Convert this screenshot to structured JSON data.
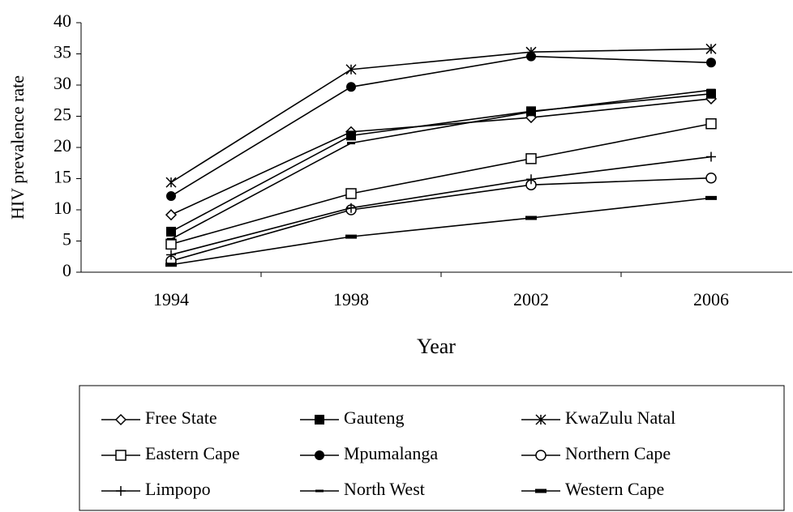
{
  "chart_data": {
    "type": "line",
    "ylabel": "HIV prevalence rate",
    "xlabel": "Year",
    "categories": [
      "1994",
      "1998",
      "2002",
      "2006"
    ],
    "ylim": [
      0,
      40
    ],
    "yticks": [
      0,
      5,
      10,
      15,
      20,
      25,
      30,
      35,
      40
    ],
    "series": [
      {
        "name": "Free State",
        "color": "#000000",
        "marker": "diamond",
        "values": [
          9.2,
          22.5,
          24.8,
          27.8
        ]
      },
      {
        "name": "Gauteng",
        "color": "#000000",
        "marker": "square-filled",
        "values": [
          6.5,
          21.9,
          25.8,
          28.6
        ]
      },
      {
        "name": "KwaZulu Natal",
        "color": "#000000",
        "marker": "asterisk",
        "values": [
          14.4,
          32.5,
          35.3,
          35.8
        ]
      },
      {
        "name": "Eastern Cape",
        "color": "#000000",
        "marker": "square-open",
        "values": [
          4.5,
          12.6,
          18.2,
          23.8
        ]
      },
      {
        "name": "Mpumalanga",
        "color": "#000000",
        "marker": "circle-filled",
        "values": [
          12.2,
          29.7,
          34.6,
          33.6
        ]
      },
      {
        "name": "Northern Cape",
        "color": "#000000",
        "marker": "circle-open",
        "values": [
          1.8,
          10.0,
          14.0,
          15.1
        ]
      },
      {
        "name": "Limpopo",
        "color": "#000000",
        "marker": "plus",
        "values": [
          2.8,
          10.3,
          14.9,
          18.5
        ]
      },
      {
        "name": "North West",
        "color": "#000000",
        "marker": "dash",
        "values": [
          5.3,
          20.7,
          25.7,
          29.2
        ]
      },
      {
        "name": "Western Cape",
        "color": "#000000",
        "marker": "thick-dash",
        "values": [
          1.2,
          5.7,
          8.7,
          11.9
        ]
      }
    ]
  }
}
